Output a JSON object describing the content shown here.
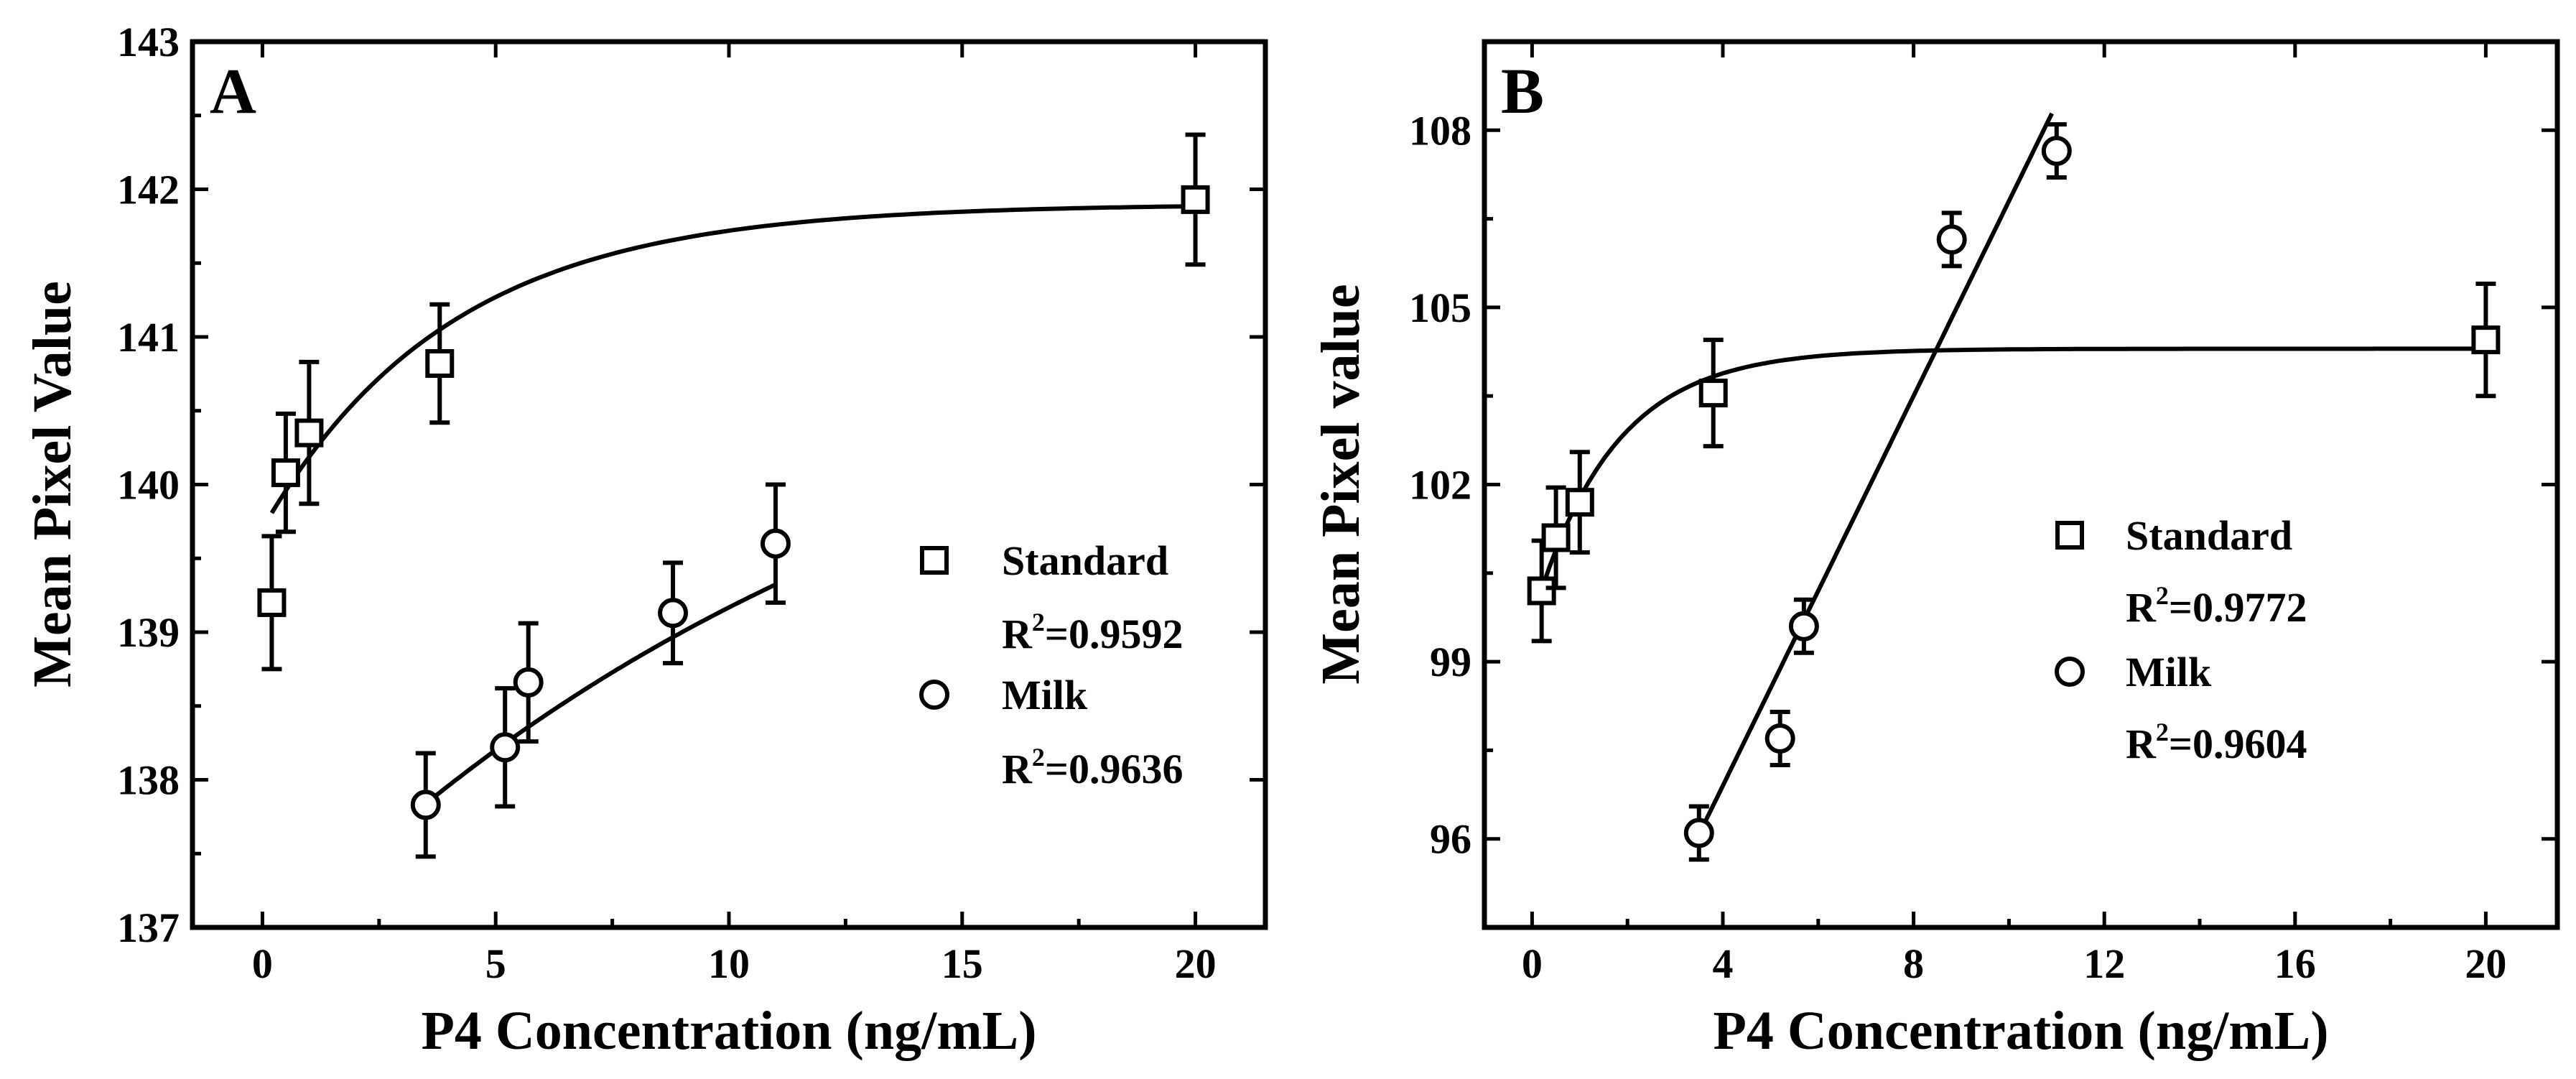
{
  "chart_data": [
    {
      "type": "scatter",
      "panel_label": "A",
      "xlabel": "P4 Concentration (ng/mL)",
      "ylabel": "Mean Pixel Value",
      "xlim": [
        -1.5,
        21.5
      ],
      "ylim": [
        137,
        143
      ],
      "xticks": [
        0,
        5,
        10,
        15,
        20
      ],
      "yticks": [
        137,
        138,
        139,
        140,
        141,
        142,
        143
      ],
      "legend_position": "center-right",
      "series": [
        {
          "name": "Standard",
          "r2_label": "R",
          "r2_sup": "2",
          "r2_value": "=0.9592",
          "marker": "square",
          "points": [
            {
              "x": 0.2,
              "y": 139.2,
              "err": 0.45
            },
            {
              "x": 0.5,
              "y": 140.08,
              "err": 0.4
            },
            {
              "x": 1.0,
              "y": 140.35,
              "err": 0.48
            },
            {
              "x": 3.8,
              "y": 140.82,
              "err": 0.4
            },
            {
              "x": 20.0,
              "y": 141.93,
              "err": 0.44
            }
          ],
          "fit": {
            "kind": "exp",
            "a": 141.9,
            "b": 2.2,
            "k": 0.25,
            "x_from": 0.2,
            "x_to": 20.0
          }
        },
        {
          "name": "Milk",
          "r2_label": "R",
          "r2_sup": "2",
          "r2_value": "=0.9636",
          "marker": "circle",
          "points": [
            {
              "x": 3.5,
              "y": 137.83,
              "err": 0.35
            },
            {
              "x": 5.2,
              "y": 138.22,
              "err": 0.4
            },
            {
              "x": 5.7,
              "y": 138.66,
              "err": 0.4
            },
            {
              "x": 8.8,
              "y": 139.13,
              "err": 0.34
            },
            {
              "x": 11.0,
              "y": 139.6,
              "err": 0.4
            }
          ],
          "fit": {
            "kind": "exp",
            "a": 141.42,
            "b": 4.6,
            "k": 0.0714,
            "x_from": 3.5,
            "x_to": 11.0
          }
        }
      ]
    },
    {
      "type": "scatter",
      "panel_label": "B",
      "xlabel": "P4 Concentration (ng/mL)",
      "ylabel": "Mean Pixel value",
      "xlim": [
        -1.0,
        21.5
      ],
      "ylim": [
        94.5,
        109.5
      ],
      "xticks": [
        0,
        4,
        8,
        12,
        16,
        20
      ],
      "yticks": [
        96,
        99,
        102,
        105,
        108
      ],
      "legend_position": "center-right",
      "series": [
        {
          "name": "Standard",
          "r2_label": "R",
          "r2_sup": "2",
          "r2_value": "=0.9772",
          "marker": "square",
          "points": [
            {
              "x": 0.2,
              "y": 100.2,
              "err": 0.85
            },
            {
              "x": 0.5,
              "y": 101.1,
              "err": 0.85
            },
            {
              "x": 1.0,
              "y": 101.7,
              "err": 0.85
            },
            {
              "x": 3.8,
              "y": 103.55,
              "err": 0.9
            },
            {
              "x": 20.0,
              "y": 104.45,
              "err": 0.95
            }
          ],
          "fit": {
            "kind": "exp",
            "a": 104.3,
            "b": 4.6,
            "k": 0.6,
            "x_from": 0.2,
            "x_to": 20.0
          }
        },
        {
          "name": "Milk",
          "r2_label": "R",
          "r2_sup": "2",
          "r2_value": "=0.9604",
          "marker": "circle",
          "points": [
            {
              "x": 3.5,
              "y": 96.1,
              "err": 0.45
            },
            {
              "x": 5.2,
              "y": 97.7,
              "err": 0.45
            },
            {
              "x": 5.7,
              "y": 99.6,
              "err": 0.45
            },
            {
              "x": 8.8,
              "y": 106.15,
              "err": 0.45
            },
            {
              "x": 11.0,
              "y": 107.65,
              "err": 0.45
            }
          ],
          "fit": {
            "kind": "line",
            "slope": 1.65,
            "intercept": 90.3,
            "x_from": 3.5,
            "x_to": 10.9
          }
        }
      ]
    }
  ]
}
